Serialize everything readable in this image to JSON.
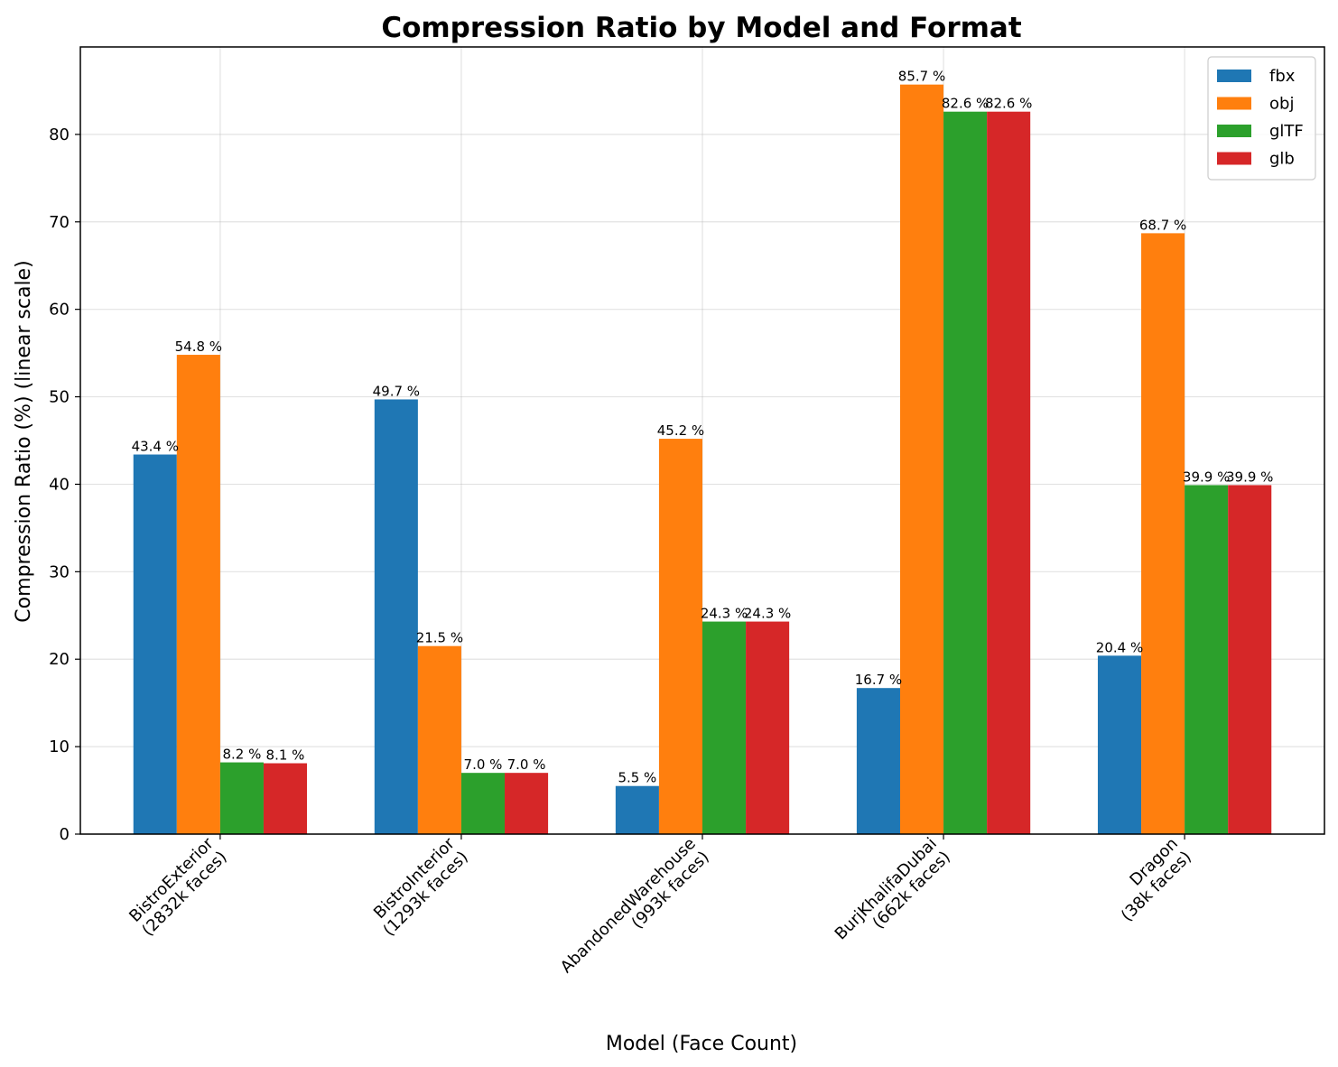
{
  "chart_data": {
    "type": "bar",
    "title": "Compression Ratio by Model and Format",
    "xlabel": "Model (Face Count)",
    "ylabel": "Compression Ratio (%) (linear scale)",
    "ylim": [
      0,
      90
    ],
    "yticks": [
      "0",
      "10",
      "20",
      "30",
      "40",
      "50",
      "60",
      "70",
      "80"
    ],
    "grid": true,
    "legend_position": "top-right",
    "value_suffix": " %",
    "categories": [
      [
        "BistroExterior",
        "(2832k faces)"
      ],
      [
        "BistroInterior",
        "(1293k faces)"
      ],
      [
        "AbandonedWarehouse",
        "(993k faces)"
      ],
      [
        "BurjKhalifaDubai",
        "(662k faces)"
      ],
      [
        "Dragon",
        "(38k faces)"
      ]
    ],
    "series": [
      {
        "name": "fbx",
        "color": "#1f77b4",
        "values": [
          43.4,
          49.7,
          5.5,
          16.7,
          20.4
        ]
      },
      {
        "name": "obj",
        "color": "#ff7f0e",
        "values": [
          54.8,
          21.5,
          45.2,
          85.7,
          68.7
        ]
      },
      {
        "name": "glTF",
        "color": "#2ca02c",
        "values": [
          8.2,
          7.0,
          24.3,
          82.6,
          39.9
        ]
      },
      {
        "name": "glb",
        "color": "#d62728",
        "values": [
          8.1,
          7.0,
          24.3,
          82.6,
          39.9
        ]
      }
    ]
  }
}
